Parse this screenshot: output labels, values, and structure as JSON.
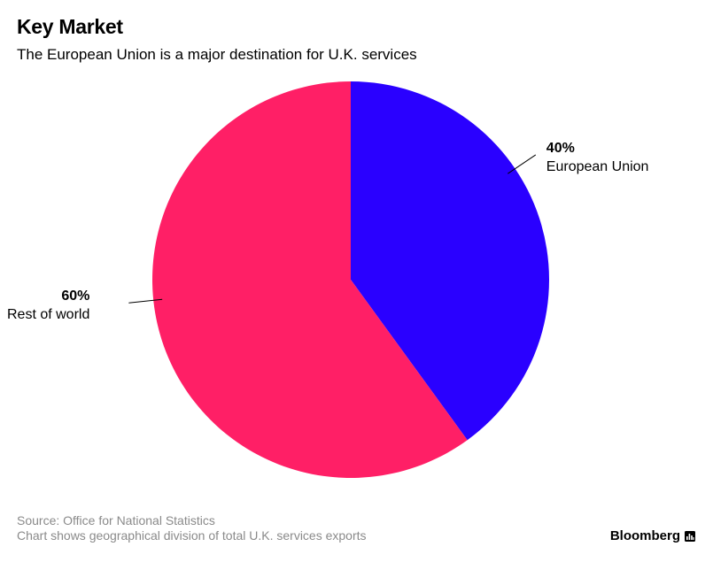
{
  "header": {
    "title": "Key Market",
    "subtitle": "The European Union is a major destination for U.K. services"
  },
  "footer": {
    "source": "Source: Office for National Statistics",
    "note": "Chart shows geographical division of total U.K. services exports",
    "brand": "Bloomberg",
    "brand_icon": "bloomberg-bars-icon"
  },
  "chart_data": {
    "type": "pie",
    "title": "Key Market",
    "subtitle": "The European Union is a major destination for U.K. services",
    "start": "12 o'clock",
    "direction": "clockwise",
    "slices": [
      {
        "label": "European Union",
        "value": 40,
        "display": "40%",
        "color": "#2a00ff"
      },
      {
        "label": "Rest of world",
        "value": 60,
        "display": "60%",
        "color": "#ff1f66"
      }
    ]
  }
}
